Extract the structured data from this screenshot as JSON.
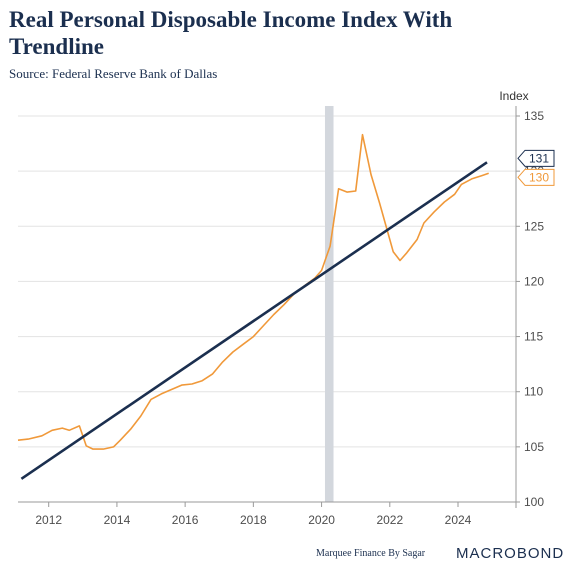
{
  "header": {
    "title": "Real Personal Disposable Income Index With Trendline",
    "source": "Source: Federal Reserve Bank of Dallas"
  },
  "footer": {
    "credit": "Marquee Finance By Sagar",
    "brand": "MACROBOND"
  },
  "colors": {
    "income": "#f0993a",
    "trend": "#1b2f4f",
    "recession": "#d3d7dd",
    "grid": "#e3e3e3"
  },
  "chart_data": {
    "type": "line",
    "ylabel": "Index",
    "ylim": [
      100,
      135
    ],
    "yticks": [
      100,
      105,
      110,
      115,
      120,
      125,
      130,
      135
    ],
    "xlim": [
      2011.1,
      2025.7
    ],
    "xticks": [
      2012,
      2014,
      2016,
      2018,
      2020,
      2022,
      2024
    ],
    "grid": "horizontal",
    "recession_band": [
      2020.1,
      2020.35
    ],
    "last_value_labels": [
      "131",
      "130"
    ],
    "series": [
      {
        "role": "income",
        "x": [
          2011.1,
          2011.4,
          2011.8,
          2012.1,
          2012.4,
          2012.6,
          2012.9,
          2013.1,
          2013.3,
          2013.6,
          2013.9,
          2014.1,
          2014.4,
          2014.7,
          2015.0,
          2015.3,
          2015.6,
          2015.9,
          2016.2,
          2016.5,
          2016.8,
          2017.1,
          2017.4,
          2017.7,
          2018.0,
          2018.3,
          2018.6,
          2018.9,
          2019.2,
          2019.5,
          2019.8,
          2020.0,
          2020.25,
          2020.5,
          2020.75,
          2021.0,
          2021.2,
          2021.45,
          2021.7,
          2021.9,
          2022.1,
          2022.3,
          2022.5,
          2022.8,
          2023.0,
          2023.3,
          2023.6,
          2023.9,
          2024.1,
          2024.4,
          2024.7,
          2024.9
        ],
        "y": [
          105.6,
          105.7,
          106.0,
          106.5,
          106.7,
          106.5,
          106.9,
          105.1,
          104.8,
          104.8,
          105.0,
          105.6,
          106.6,
          107.8,
          109.3,
          109.8,
          110.2,
          110.6,
          110.7,
          111.0,
          111.6,
          112.7,
          113.6,
          114.3,
          115.0,
          116.0,
          117.0,
          117.9,
          118.9,
          119.6,
          120.3,
          121.0,
          123.2,
          128.4,
          128.1,
          128.2,
          133.3,
          129.7,
          127.1,
          124.9,
          122.7,
          121.9,
          122.6,
          123.8,
          125.3,
          126.3,
          127.2,
          127.9,
          128.8,
          129.3,
          129.6,
          129.8
        ]
      },
      {
        "role": "trend",
        "x": [
          2011.2,
          2024.85
        ],
        "y": [
          102.1,
          130.8
        ]
      }
    ]
  }
}
